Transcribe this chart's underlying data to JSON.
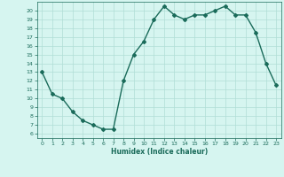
{
  "x": [
    0,
    1,
    2,
    3,
    4,
    5,
    6,
    7,
    8,
    9,
    10,
    11,
    12,
    13,
    14,
    15,
    16,
    17,
    18,
    19,
    20,
    21,
    22,
    23
  ],
  "y": [
    13,
    10.5,
    10,
    8.5,
    7.5,
    7,
    6.5,
    6.5,
    12,
    15,
    16.5,
    19,
    20.5,
    19.5,
    19,
    19.5,
    19.5,
    20,
    20.5,
    19.5,
    19.5,
    17.5,
    14,
    11.5
  ],
  "line_color": "#1a6b5a",
  "bg_color": "#d6f5f0",
  "grid_color": "#b0ddd6",
  "xlabel": "Humidex (Indice chaleur)",
  "ylabel_ticks": [
    6,
    7,
    8,
    9,
    10,
    11,
    12,
    13,
    14,
    15,
    16,
    17,
    18,
    19,
    20
  ],
  "ylim": [
    5.5,
    21.0
  ],
  "xlim": [
    -0.5,
    23.5
  ]
}
